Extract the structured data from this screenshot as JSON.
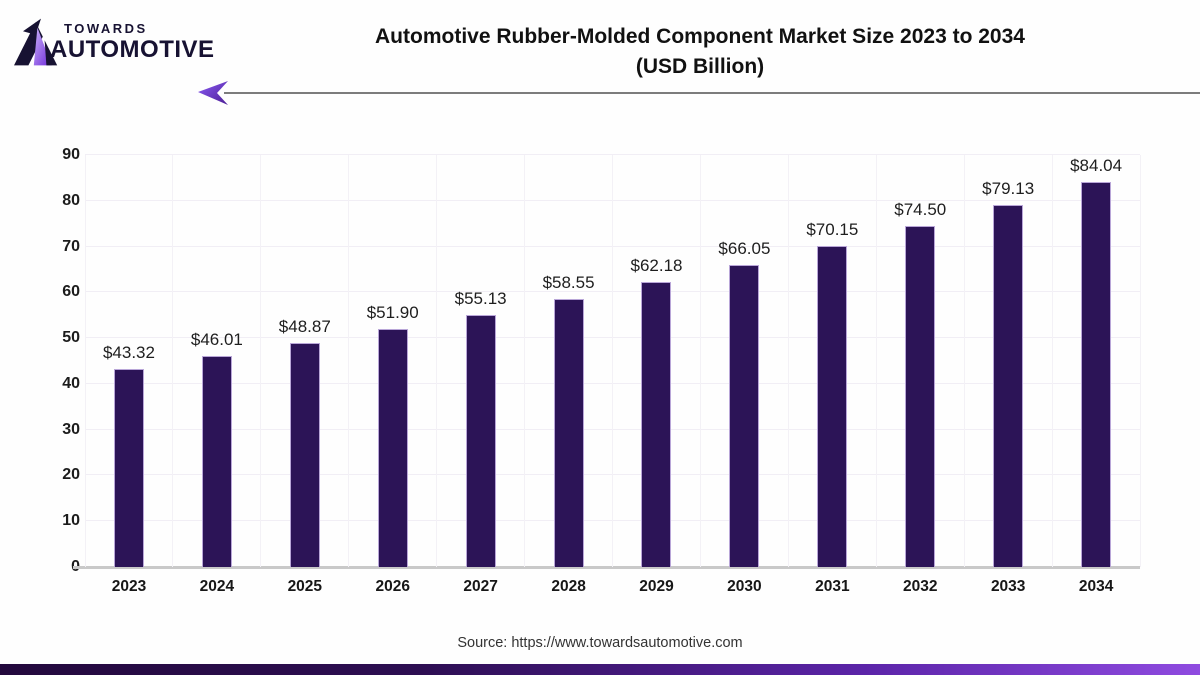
{
  "logo": {
    "line1": "TOWARDS",
    "line2": "AUTOMOTIVE"
  },
  "header": {
    "title_line1": "Automotive Rubber-Molded Component Market Size 2023 to 2034",
    "title_line2": "(USD Billion)"
  },
  "chart_data": {
    "type": "bar",
    "title": "Automotive Rubber-Molded Component Market Size 2023 to 2034 (USD Billion)",
    "categories": [
      "2023",
      "2024",
      "2025",
      "2026",
      "2027",
      "2028",
      "2029",
      "2030",
      "2031",
      "2032",
      "2033",
      "2034"
    ],
    "values": [
      43.32,
      46.01,
      48.87,
      51.9,
      55.13,
      58.55,
      62.18,
      66.05,
      70.15,
      74.5,
      79.13,
      84.04
    ],
    "value_labels": [
      "$43.32",
      "$46.01",
      "$48.87",
      "$51.90",
      "$55.13",
      "$58.55",
      "$62.18",
      "$66.05",
      "$70.15",
      "$74.50",
      "$79.13",
      "$84.04"
    ],
    "xlabel": "",
    "ylabel": "",
    "ylim": [
      0,
      90
    ],
    "yticks": [
      0,
      10,
      20,
      30,
      40,
      50,
      60,
      70,
      80,
      90
    ],
    "grid": true,
    "legend": "none",
    "bar_color": "#2c1457"
  },
  "footer": {
    "source": "Source: https://www.towardsautomotive.com"
  },
  "colors": {
    "bar": "#2c1457",
    "accent_purple_light": "#a78bfa",
    "accent_purple_dark": "#4c1d95",
    "header_line": "#7c7c7c",
    "footer_gradient_left": "#23093d",
    "footer_gradient_right": "#8f4be0"
  }
}
